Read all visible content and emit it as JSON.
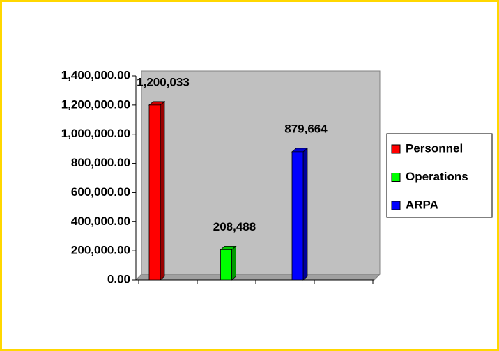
{
  "chart_data": {
    "type": "bar",
    "categories": [
      null
    ],
    "series": [
      {
        "name": "Personnel",
        "color": "#ff0000",
        "values": [
          1200033
        ],
        "value_labels": [
          "1,200,033"
        ]
      },
      {
        "name": "Operations",
        "color": "#00ff00",
        "values": [
          208488
        ],
        "value_labels": [
          "208,488"
        ]
      },
      {
        "name": "ARPA",
        "color": "#0000ff",
        "values": [
          879664
        ],
        "value_labels": [
          "879,664"
        ]
      }
    ],
    "ylim": [
      0,
      1400000
    ],
    "yticks": [
      {
        "value": 0,
        "label": "0.00"
      },
      {
        "value": 200000,
        "label": "200,000.00"
      },
      {
        "value": 400000,
        "label": "400,000.00"
      },
      {
        "value": 600000,
        "label": "600,000.00"
      },
      {
        "value": 800000,
        "label": "800,000.00"
      },
      {
        "value": 1000000,
        "label": "1,000,000.00"
      },
      {
        "value": 1200000,
        "label": "1,200,000.00"
      },
      {
        "value": 1400000,
        "label": "1,400,000.00"
      }
    ],
    "legend": "right"
  }
}
